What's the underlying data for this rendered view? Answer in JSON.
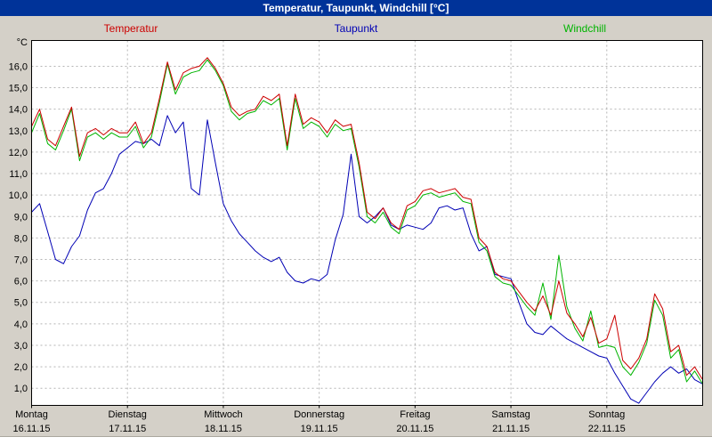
{
  "window": {
    "title": "Temperatur, Taupunkt, Windchill [°C]"
  },
  "legend": [
    {
      "label": "Temperatur",
      "color": "#cc0000"
    },
    {
      "label": "Taupunkt",
      "color": "#0000b4"
    },
    {
      "label": "Windchill",
      "color": "#00b400"
    }
  ],
  "colors": {
    "titlebar": "#003399",
    "chart_background": "#d4d0c8",
    "plot_background": "#ffffff",
    "grid": "#b4b4b4",
    "plot_border": "#000000",
    "axis_text": "#000000"
  },
  "chart_data": {
    "type": "line",
    "title": "Temperatur, Taupunkt, Windchill [°C]",
    "ylabel": "°C",
    "xlabel": "",
    "grid": true,
    "legend_position": "top",
    "ylim": [
      0.2,
      17.2
    ],
    "yticks": [
      1,
      2,
      3,
      4,
      5,
      6,
      7,
      8,
      9,
      10,
      11,
      12,
      13,
      14,
      15,
      16
    ],
    "ytick_labels": [
      "1,0",
      "2,0",
      "3,0",
      "4,0",
      "5,0",
      "6,0",
      "7,0",
      "8,0",
      "9,0",
      "10,0",
      "11,0",
      "12,0",
      "13,0",
      "14,0",
      "15,0",
      "16,0"
    ],
    "x_unit": "hours",
    "x_step_hours": 2,
    "x_range_hours": [
      0,
      168
    ],
    "days": [
      {
        "weekday": "Montag",
        "date": "16.11.15"
      },
      {
        "weekday": "Dienstag",
        "date": "17.11.15"
      },
      {
        "weekday": "Mittwoch",
        "date": "18.11.15"
      },
      {
        "weekday": "Donnerstag",
        "date": "19.11.15"
      },
      {
        "weekday": "Freitag",
        "date": "20.11.15"
      },
      {
        "weekday": "Samstag",
        "date": "21.11.15"
      },
      {
        "weekday": "Sonntag",
        "date": "22.11.15"
      }
    ],
    "series": [
      {
        "name": "Temperatur",
        "color": "#cc0000",
        "values": [
          13.2,
          14.0,
          12.6,
          12.3,
          13.2,
          14.1,
          11.8,
          12.9,
          13.1,
          12.8,
          13.1,
          12.9,
          12.9,
          13.4,
          12.4,
          12.9,
          14.5,
          16.2,
          14.9,
          15.7,
          15.9,
          16.0,
          16.4,
          15.9,
          15.2,
          14.1,
          13.7,
          13.9,
          14.0,
          14.6,
          14.4,
          14.7,
          12.3,
          14.7,
          13.3,
          13.6,
          13.4,
          12.9,
          13.5,
          13.2,
          13.3,
          11.5,
          9.2,
          8.9,
          9.4,
          8.7,
          8.4,
          9.5,
          9.7,
          10.2,
          10.3,
          10.1,
          10.2,
          10.3,
          9.9,
          9.8,
          8.0,
          7.6,
          6.4,
          6.1,
          6.0,
          5.5,
          5.0,
          4.6,
          5.3,
          4.4,
          6.0,
          4.5,
          4.0,
          3.4,
          4.3,
          3.1,
          3.3,
          4.4,
          2.3,
          1.9,
          2.4,
          3.3,
          5.4,
          4.7,
          2.7,
          3.0,
          1.6,
          2.0,
          1.4
        ]
      },
      {
        "name": "Taupunkt",
        "color": "#0000b4",
        "values": [
          9.2,
          9.6,
          8.3,
          7.0,
          6.8,
          7.6,
          8.1,
          9.3,
          10.1,
          10.3,
          11.0,
          11.9,
          12.2,
          12.5,
          12.4,
          12.6,
          12.3,
          13.7,
          12.9,
          13.4,
          10.3,
          10.0,
          13.5,
          11.5,
          9.6,
          8.8,
          8.2,
          7.8,
          7.4,
          7.1,
          6.9,
          7.1,
          6.4,
          6.0,
          5.9,
          6.1,
          6.0,
          6.3,
          7.9,
          9.1,
          11.9,
          9.0,
          8.7,
          9.0,
          9.4,
          8.6,
          8.4,
          8.6,
          8.5,
          8.4,
          8.7,
          9.4,
          9.5,
          9.3,
          9.4,
          8.2,
          7.4,
          7.6,
          6.3,
          6.2,
          6.1,
          5.0,
          4.0,
          3.6,
          3.5,
          3.9,
          3.6,
          3.3,
          3.1,
          2.9,
          2.7,
          2.5,
          2.4,
          1.7,
          1.1,
          0.5,
          0.3,
          0.8,
          1.3,
          1.7,
          2.0,
          1.7,
          1.9,
          1.4,
          1.2
        ]
      },
      {
        "name": "Windchill",
        "color": "#00b400",
        "values": [
          12.9,
          13.8,
          12.4,
          12.1,
          13.0,
          14.0,
          11.6,
          12.7,
          12.9,
          12.6,
          12.9,
          12.7,
          12.7,
          13.2,
          12.2,
          12.7,
          14.3,
          16.1,
          14.7,
          15.5,
          15.7,
          15.8,
          16.3,
          15.8,
          15.1,
          13.9,
          13.5,
          13.8,
          13.9,
          14.4,
          14.2,
          14.5,
          12.1,
          14.5,
          13.1,
          13.4,
          13.2,
          12.7,
          13.3,
          13.0,
          13.1,
          11.3,
          9.0,
          8.7,
          9.2,
          8.5,
          8.2,
          9.3,
          9.5,
          10.0,
          10.1,
          9.9,
          10.0,
          10.1,
          9.7,
          9.6,
          7.8,
          7.4,
          6.2,
          5.9,
          5.8,
          5.3,
          4.8,
          4.4,
          5.9,
          4.2,
          7.2,
          4.8,
          3.8,
          3.2,
          4.6,
          2.9,
          3.0,
          2.9,
          2.0,
          1.6,
          2.2,
          3.1,
          5.1,
          4.4,
          2.4,
          2.8,
          1.3,
          1.8,
          1.2
        ]
      }
    ]
  }
}
